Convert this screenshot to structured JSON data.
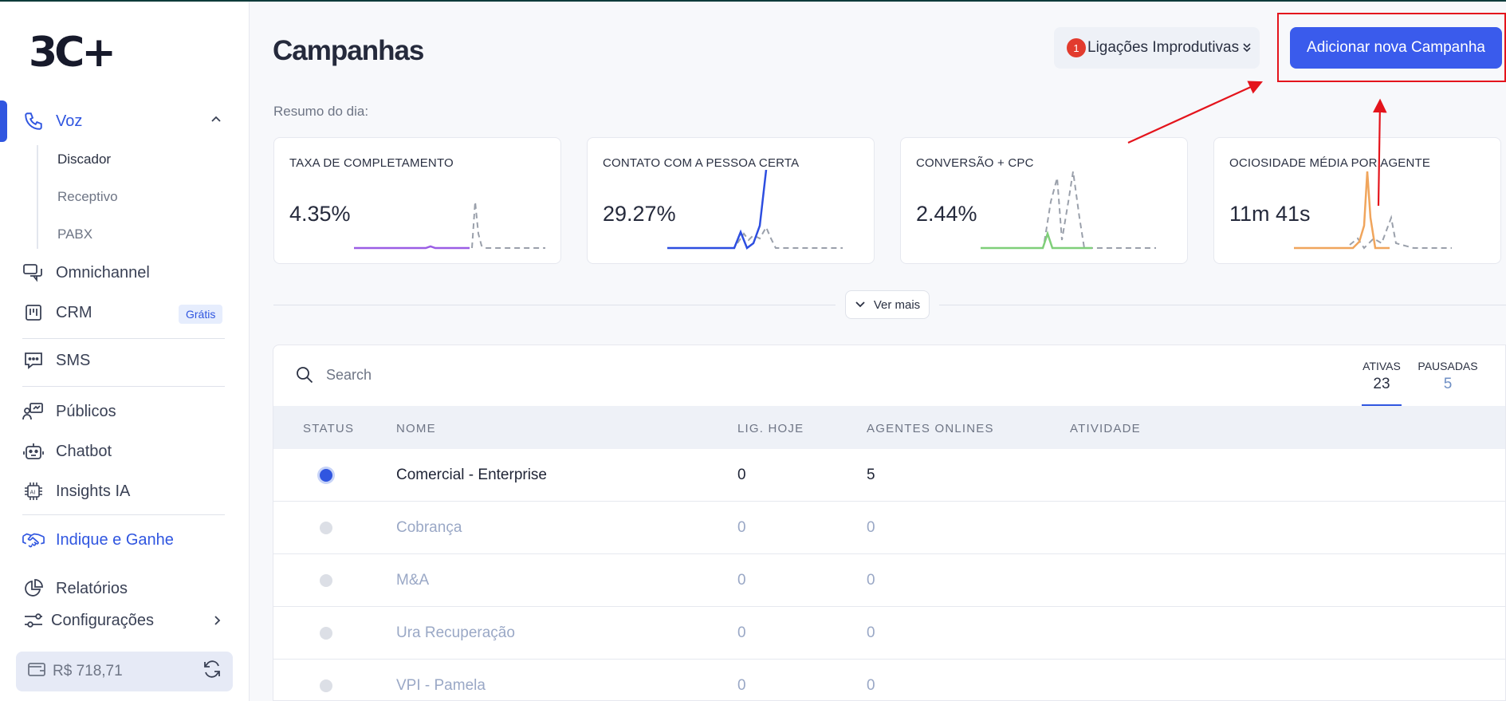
{
  "sidebar": {
    "logo": "3C+",
    "voz": "Voz",
    "sub": [
      "Discador",
      "Receptivo",
      "PABX"
    ],
    "omnichannel": "Omnichannel",
    "crm": "CRM",
    "crm_badge": "Grátis",
    "sms": "SMS",
    "publicos": "Públicos",
    "chatbot": "Chatbot",
    "insights": "Insights IA",
    "indique": "Indique e Ganhe",
    "relatorios": "Relatórios",
    "configuracoes": "Configurações",
    "wallet_balance": "R$ 718,71"
  },
  "header": {
    "title": "Campanhas",
    "improd_count": "1",
    "improd_label": "Ligações Improdutivas",
    "add_label": "Adicionar nova Campanha"
  },
  "resumo_label": "Resumo do dia:",
  "cards": [
    {
      "label": "TAXA DE COMPLETAMENTO",
      "value": "4.35%",
      "color": "#9b5de5"
    },
    {
      "label": "CONTATO COM A PESSOA CERTA",
      "value": "29.27%",
      "color": "#2d4ee0"
    },
    {
      "label": "CONVERSÃO + CPC",
      "value": "2.44%",
      "color": "#7fcf79"
    },
    {
      "label": "OCIOSIDADE MÉDIA POR AGENTE",
      "value": "11m 41s",
      "color": "#f0a55c"
    }
  ],
  "ver_mais": "Ver mais",
  "table": {
    "search_placeholder": "Search",
    "tabs": [
      {
        "label": "ATIVAS",
        "count": "23"
      },
      {
        "label": "PAUSADAS",
        "count": "5"
      }
    ],
    "columns": [
      "STATUS",
      "NOME",
      "LIG. HOJE",
      "AGENTES ONLINES",
      "ATIVIDADE"
    ],
    "rows": [
      {
        "nome": "Comercial - Enterprise",
        "lig_hoje": "0",
        "agentes": "5"
      },
      {
        "nome": "Cobrança",
        "lig_hoje": "0",
        "agentes": "0"
      },
      {
        "nome": "M&A",
        "lig_hoje": "0",
        "agentes": "0"
      },
      {
        "nome": "Ura Recuperação",
        "lig_hoje": "0",
        "agentes": "0"
      },
      {
        "nome": "VPI - Pamela",
        "lig_hoje": "0",
        "agentes": "0"
      }
    ]
  }
}
